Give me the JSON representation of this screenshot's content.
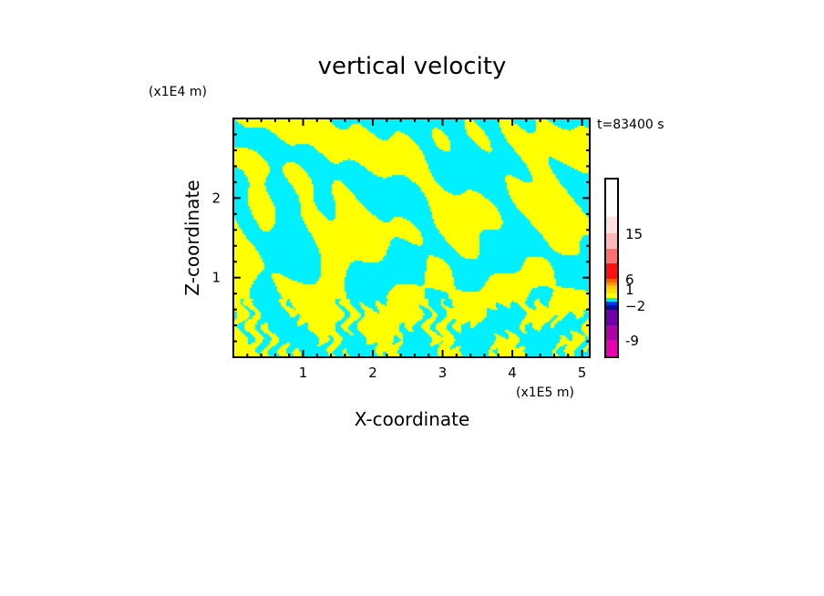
{
  "chart_data": {
    "type": "heatmap",
    "title": "vertical velocity",
    "xlabel": "X-coordinate",
    "ylabel": "Z-coordinate",
    "x_unit": "(x1E5 m)",
    "y_unit": "(x1E4 m)",
    "time_label": "t=83400 s",
    "xlim": [
      0,
      5.11
    ],
    "ylim": [
      0,
      3.0
    ],
    "xticks": [
      "1",
      "2",
      "3",
      "4",
      "5"
    ],
    "yticks": [
      "1",
      "2"
    ],
    "minor_tick_step": 0.2,
    "field_colors": {
      "positive": "#ffff00",
      "negative": "#00f0ff"
    },
    "colorbar": {
      "colors": [
        "#e800b0",
        "#b000a8",
        "#7000a8",
        "#001090",
        "#0030f0",
        "#00e8f8",
        "#ffff00",
        "#ffe000",
        "#ffc800",
        "#ff9800",
        "#ff6000",
        "#ff1010",
        "#ff7070",
        "#ffb8b8",
        "#ffe0e0"
      ],
      "labels": [
        {
          "text": "-9",
          "boundary": 1
        },
        {
          "text": "−2",
          "boundary": 4
        },
        {
          "text": "1",
          "boundary": 8
        },
        {
          "text": "6",
          "boundary": 11
        },
        {
          "text": "15",
          "boundary": 14
        }
      ]
    }
  }
}
